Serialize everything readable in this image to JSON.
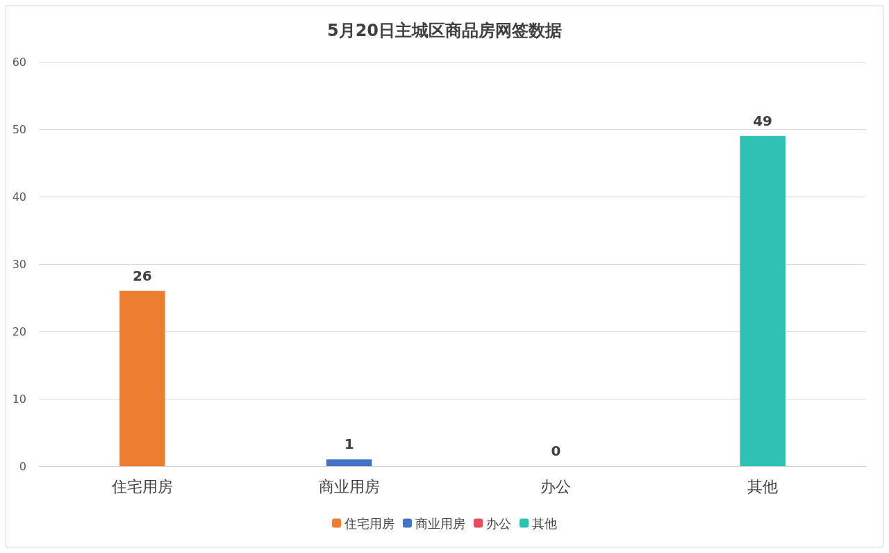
{
  "chart_data": {
    "type": "bar",
    "title": "5月20日主城区商品房网签数据",
    "categories": [
      "住宅用房",
      "商业用房",
      "办公",
      "其他"
    ],
    "series": [
      {
        "name": "住宅用房",
        "color": "#ed7d31",
        "values": [
          26,
          null,
          null,
          null
        ]
      },
      {
        "name": "商业用房",
        "color": "#4472c4",
        "values": [
          null,
          1,
          null,
          null
        ]
      },
      {
        "name": "办公",
        "color": "#e84c5f",
        "values": [
          null,
          null,
          0,
          null
        ]
      },
      {
        "name": "其他",
        "color": "#2ec1b4",
        "values": [
          null,
          null,
          null,
          49
        ]
      }
    ],
    "stacked": true,
    "ylim": [
      0,
      60
    ],
    "yticks": [
      0,
      10,
      20,
      30,
      40,
      50,
      60
    ],
    "grid": "y",
    "legend": "bottom",
    "data_labels": true
  }
}
